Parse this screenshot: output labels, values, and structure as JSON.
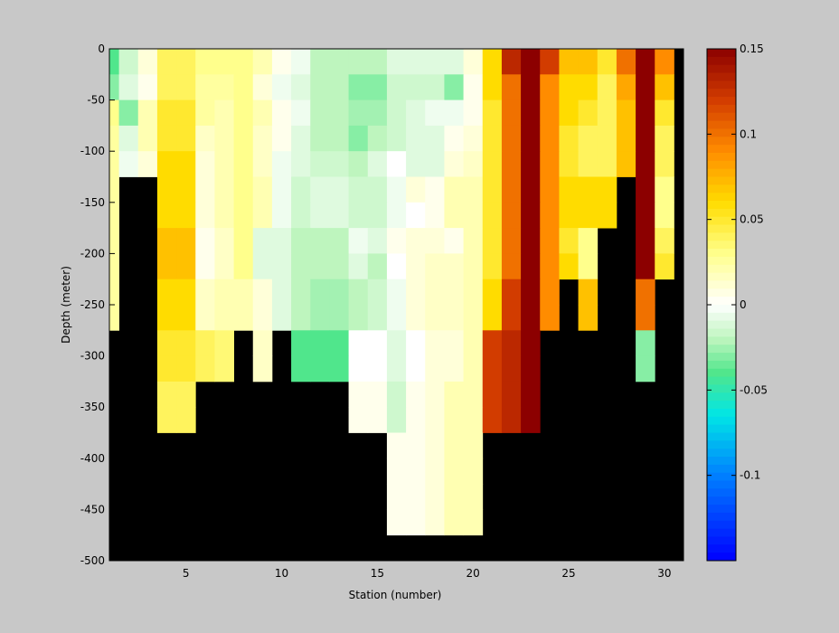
{
  "chart_data": {
    "type": "heatmap",
    "xlabel": "Station (number)",
    "ylabel": "Depth (meter)",
    "xlim": [
      1,
      31
    ],
    "ylim": [
      -500,
      0
    ],
    "x_ticks": [
      "5",
      "10",
      "15",
      "20",
      "25",
      "30"
    ],
    "x_tick_values": [
      5,
      10,
      15,
      20,
      25,
      30
    ],
    "y_ticks": [
      "0",
      "-50",
      "-100",
      "-150",
      "-200",
      "-250",
      "-300",
      "-350",
      "-400",
      "-450",
      "-500"
    ],
    "y_tick_values": [
      0,
      -50,
      -100,
      -150,
      -200,
      -250,
      -300,
      -350,
      -400,
      -450,
      -500
    ],
    "colorbar": {
      "range": [
        -0.15,
        0.15
      ],
      "ticks": [
        "0.15",
        "0.1",
        "0.05",
        "0",
        "-0.05",
        "-0.1"
      ],
      "tick_values": [
        0.15,
        0.1,
        0.05,
        0,
        -0.05,
        -0.1
      ]
    },
    "missing_color": "#000000",
    "cell_depth": 25,
    "stations": [
      1,
      2,
      3,
      4,
      5,
      6,
      7,
      8,
      9,
      10,
      11,
      12,
      13,
      14,
      15,
      16,
      17,
      18,
      19,
      20,
      21,
      22,
      23,
      24,
      25,
      26,
      27,
      28,
      29,
      30
    ],
    "grid": [
      [
        -0.04,
        -0.015,
        0.01,
        0.04,
        0.04,
        0.03,
        0.03,
        0.03,
        0.02,
        0.005,
        -0.005,
        -0.02,
        -0.02,
        -0.02,
        -0.02,
        -0.01,
        -0.01,
        -0.01,
        -0.01,
        0.01,
        0.06,
        0.13,
        0.15,
        0.12,
        0.07,
        0.07,
        0.05,
        0.1,
        0.15,
        0.09
      ],
      [
        -0.03,
        -0.01,
        0.005,
        0.04,
        0.04,
        0.025,
        0.025,
        0.03,
        0.01,
        -0.005,
        -0.01,
        -0.02,
        -0.02,
        -0.03,
        -0.03,
        -0.015,
        -0.015,
        -0.015,
        -0.03,
        0.005,
        0.06,
        0.1,
        0.15,
        0.09,
        0.06,
        0.06,
        0.04,
        0.08,
        0.15,
        0.07
      ],
      [
        0.03,
        -0.03,
        0.02,
        0.05,
        0.05,
        0.025,
        0.02,
        0.03,
        0.02,
        0.005,
        -0.005,
        -0.02,
        -0.02,
        -0.025,
        -0.025,
        -0.015,
        -0.01,
        -0.005,
        -0.005,
        0.005,
        0.05,
        0.1,
        0.15,
        0.09,
        0.06,
        0.05,
        0.04,
        0.07,
        0.15,
        0.05
      ],
      [
        0.025,
        -0.01,
        0.02,
        0.05,
        0.05,
        0.015,
        0.02,
        0.03,
        0.015,
        0.005,
        -0.01,
        -0.02,
        -0.02,
        -0.03,
        -0.02,
        -0.015,
        -0.01,
        -0.01,
        0.005,
        0.01,
        0.05,
        0.1,
        0.15,
        0.09,
        0.05,
        0.04,
        0.04,
        0.07,
        0.15,
        0.04
      ],
      [
        0.025,
        -0.005,
        0.01,
        0.06,
        0.06,
        0.01,
        0.02,
        0.03,
        0.015,
        -0.005,
        -0.01,
        -0.015,
        -0.015,
        -0.02,
        -0.01,
        0.0,
        -0.01,
        -0.01,
        0.01,
        0.015,
        0.05,
        0.1,
        0.15,
        0.09,
        0.05,
        0.04,
        0.04,
        0.07,
        0.15,
        0.04
      ],
      [
        0.025,
        null,
        null,
        0.06,
        0.06,
        0.01,
        0.02,
        0.03,
        0.02,
        -0.005,
        -0.015,
        -0.01,
        -0.01,
        -0.015,
        -0.015,
        -0.005,
        0.01,
        0.005,
        0.02,
        0.02,
        0.05,
        0.1,
        0.15,
        0.09,
        0.06,
        0.06,
        0.06,
        null,
        0.15,
        0.03
      ],
      [
        0.025,
        null,
        null,
        0.06,
        0.06,
        0.01,
        0.02,
        0.03,
        0.02,
        -0.005,
        -0.015,
        -0.01,
        -0.01,
        -0.015,
        -0.015,
        -0.005,
        0.0,
        0.005,
        0.02,
        0.02,
        0.05,
        0.1,
        0.15,
        0.09,
        0.06,
        0.06,
        0.06,
        null,
        0.15,
        0.03
      ],
      [
        0.025,
        null,
        null,
        0.07,
        0.07,
        0.005,
        0.015,
        0.03,
        -0.01,
        -0.01,
        -0.02,
        -0.02,
        -0.02,
        -0.005,
        -0.01,
        0.005,
        0.01,
        0.01,
        0.005,
        0.02,
        0.05,
        0.1,
        0.15,
        0.09,
        0.05,
        0.03,
        null,
        null,
        0.15,
        0.04
      ],
      [
        0.025,
        null,
        null,
        0.07,
        0.07,
        0.005,
        0.015,
        0.03,
        -0.01,
        -0.01,
        -0.02,
        -0.02,
        -0.02,
        -0.01,
        -0.02,
        0.0,
        0.01,
        0.015,
        0.015,
        0.02,
        0.05,
        0.1,
        0.15,
        0.09,
        0.06,
        0.03,
        null,
        null,
        0.15,
        0.05
      ],
      [
        0.025,
        null,
        null,
        0.06,
        0.06,
        0.015,
        0.02,
        0.02,
        0.01,
        -0.01,
        -0.02,
        -0.025,
        -0.025,
        -0.02,
        -0.015,
        -0.005,
        0.01,
        0.015,
        0.015,
        0.02,
        0.06,
        0.12,
        0.15,
        0.09,
        null,
        0.07,
        null,
        null,
        0.1,
        null
      ],
      [
        0.025,
        null,
        null,
        0.06,
        0.06,
        0.015,
        0.02,
        0.02,
        0.01,
        -0.01,
        -0.02,
        -0.025,
        -0.025,
        -0.02,
        -0.015,
        -0.005,
        0.01,
        0.015,
        0.015,
        0.02,
        0.06,
        0.12,
        0.15,
        0.09,
        null,
        0.07,
        null,
        null,
        0.1,
        null
      ],
      [
        null,
        null,
        null,
        0.05,
        0.05,
        0.04,
        0.035,
        null,
        0.015,
        null,
        -0.04,
        -0.04,
        -0.04,
        0.0,
        0.0,
        -0.01,
        0.0,
        0.01,
        0.01,
        0.02,
        0.12,
        0.13,
        0.15,
        null,
        null,
        null,
        null,
        null,
        -0.03,
        null
      ],
      [
        null,
        null,
        null,
        0.05,
        0.05,
        0.04,
        0.035,
        null,
        0.015,
        null,
        -0.04,
        -0.04,
        -0.04,
        0.0,
        0.0,
        -0.01,
        0.0,
        0.01,
        0.01,
        0.02,
        0.12,
        0.13,
        0.15,
        null,
        null,
        null,
        null,
        null,
        -0.03,
        null
      ],
      [
        null,
        null,
        null,
        0.04,
        0.04,
        null,
        null,
        null,
        null,
        null,
        null,
        null,
        null,
        0.005,
        0.005,
        -0.015,
        0.005,
        0.01,
        0.02,
        0.02,
        0.12,
        0.13,
        0.15,
        null,
        null,
        null,
        null,
        null,
        null,
        null
      ],
      [
        null,
        null,
        null,
        0.04,
        0.04,
        null,
        null,
        null,
        null,
        null,
        null,
        null,
        null,
        0.005,
        0.005,
        -0.015,
        0.005,
        0.01,
        0.02,
        0.02,
        0.12,
        0.13,
        0.15,
        null,
        null,
        null,
        null,
        null,
        null,
        null
      ],
      [
        null,
        null,
        null,
        null,
        null,
        null,
        null,
        null,
        null,
        null,
        null,
        null,
        null,
        null,
        null,
        0.005,
        0.005,
        0.01,
        0.02,
        0.02,
        null,
        null,
        null,
        null,
        null,
        null,
        null,
        null,
        null,
        null
      ],
      [
        null,
        null,
        null,
        null,
        null,
        null,
        null,
        null,
        null,
        null,
        null,
        null,
        null,
        null,
        null,
        0.005,
        0.005,
        0.01,
        0.02,
        0.02,
        null,
        null,
        null,
        null,
        null,
        null,
        null,
        null,
        null,
        null
      ],
      [
        null,
        null,
        null,
        null,
        null,
        null,
        null,
        null,
        null,
        null,
        null,
        null,
        null,
        null,
        null,
        0.005,
        0.005,
        0.01,
        0.02,
        0.02,
        null,
        null,
        null,
        null,
        null,
        null,
        null,
        null,
        null,
        null
      ],
      [
        null,
        null,
        null,
        null,
        null,
        null,
        null,
        null,
        null,
        null,
        null,
        null,
        null,
        null,
        null,
        0.005,
        0.005,
        0.01,
        0.02,
        0.02,
        null,
        null,
        null,
        null,
        null,
        null,
        null,
        null,
        null,
        null
      ],
      [
        null,
        null,
        null,
        null,
        null,
        null,
        null,
        null,
        null,
        null,
        null,
        null,
        null,
        null,
        null,
        null,
        null,
        null,
        null,
        null,
        null,
        null,
        null,
        null,
        null,
        null,
        null,
        null,
        null,
        null
      ],
      [
        null,
        null,
        null,
        null,
        null,
        null,
        null,
        null,
        null,
        null,
        null,
        null,
        null,
        null,
        null,
        null,
        null,
        null,
        null,
        null,
        null,
        null,
        null,
        null,
        null,
        null,
        null,
        null,
        null,
        null
      ]
    ]
  }
}
